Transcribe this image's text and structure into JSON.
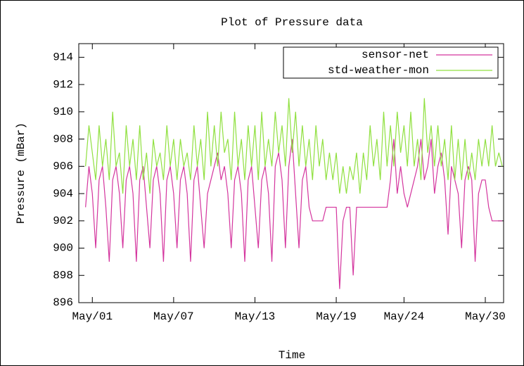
{
  "chart_data": {
    "type": "line",
    "title": "Plot of Pressure data",
    "xlabel": "Time",
    "ylabel": "Pressure (mBar)",
    "xlim": [
      0,
      31.35
    ],
    "ylim": [
      896,
      915
    ],
    "xticks": [
      {
        "value": 1,
        "label": "May/01"
      },
      {
        "value": 7,
        "label": "May/07"
      },
      {
        "value": 13,
        "label": "May/13"
      },
      {
        "value": 19,
        "label": "May/19"
      },
      {
        "value": 24,
        "label": "May/24"
      },
      {
        "value": 30,
        "label": "May/30"
      }
    ],
    "yticks": [
      896,
      898,
      900,
      902,
      904,
      906,
      908,
      910,
      912,
      914
    ],
    "legend": "top-right",
    "x": [
      0.5,
      0.75,
      1,
      1.25,
      1.5,
      1.75,
      2,
      2.25,
      2.5,
      2.75,
      3,
      3.25,
      3.5,
      3.75,
      4,
      4.25,
      4.5,
      4.75,
      5,
      5.25,
      5.5,
      5.75,
      6,
      6.25,
      6.5,
      6.75,
      7,
      7.25,
      7.5,
      7.75,
      8,
      8.25,
      8.5,
      8.75,
      9,
      9.25,
      9.5,
      9.75,
      10,
      10.25,
      10.5,
      10.75,
      11,
      11.25,
      11.5,
      11.75,
      12,
      12.25,
      12.5,
      12.75,
      13,
      13.25,
      13.5,
      13.75,
      14,
      14.25,
      14.5,
      14.75,
      15,
      15.25,
      15.5,
      15.75,
      16,
      16.25,
      16.5,
      16.75,
      17,
      17.25,
      17.5,
      17.75,
      18,
      18.25,
      18.5,
      18.75,
      19,
      19.25,
      19.5,
      19.75,
      20,
      20.25,
      20.5,
      20.75,
      21,
      21.25,
      21.5,
      21.75,
      22,
      22.25,
      22.5,
      22.75,
      23,
      23.25,
      23.5,
      23.75,
      24,
      24.25,
      24.5,
      24.75,
      25,
      25.25,
      25.5,
      25.75,
      26,
      26.25,
      26.5,
      26.75,
      27,
      27.25,
      27.5,
      27.75,
      28,
      28.25,
      28.5,
      28.75,
      29,
      29.25,
      29.5,
      29.75,
      30,
      30.25,
      30.5,
      30.75,
      31,
      31.25
    ],
    "series": [
      {
        "name": "sensor-net",
        "color": "#d4359e",
        "values": [
          903,
          906,
          904,
          900,
          905,
          906,
          903,
          899,
          905,
          906,
          904,
          900,
          905,
          906,
          904,
          899,
          905,
          906,
          903,
          900,
          905,
          906,
          904,
          899,
          905,
          906,
          904,
          900,
          905,
          906,
          904,
          899,
          905,
          906,
          903,
          900,
          904,
          905,
          906,
          907,
          905,
          906,
          904,
          900,
          905,
          906,
          904,
          899,
          905,
          906,
          903,
          900,
          905,
          906,
          904,
          899,
          906,
          907,
          905,
          900,
          906,
          908,
          904,
          900,
          905,
          906,
          903,
          902,
          902,
          902,
          902,
          903,
          903,
          903,
          903,
          897,
          902,
          903,
          903,
          898,
          903,
          903,
          903,
          903,
          903,
          903,
          903,
          903,
          903,
          903,
          905,
          908,
          904,
          906,
          904,
          903,
          904,
          905,
          906,
          908,
          905,
          906,
          908,
          904,
          906,
          907,
          905,
          901,
          906,
          905,
          904,
          900,
          905,
          906,
          905,
          899,
          904,
          905,
          905,
          903,
          902,
          902,
          902,
          902
        ]
      },
      {
        "name": "std-weather-mon",
        "color": "#90e040",
        "values": [
          906,
          909,
          907,
          905,
          909,
          906,
          908,
          905,
          910,
          906,
          907,
          904,
          909,
          906,
          908,
          905,
          909,
          905,
          907,
          904,
          908,
          906,
          907,
          905,
          909,
          906,
          908,
          905,
          908,
          906,
          907,
          905,
          909,
          906,
          908,
          905,
          910,
          906,
          909,
          906,
          910,
          907,
          908,
          905,
          910,
          906,
          908,
          905,
          909,
          906,
          909,
          905,
          910,
          906,
          908,
          906,
          910,
          907,
          909,
          906,
          911,
          907,
          910,
          906,
          909,
          906,
          908,
          905,
          909,
          906,
          908,
          905,
          907,
          905,
          907,
          904,
          906,
          904,
          906,
          905,
          907,
          904,
          907,
          905,
          909,
          906,
          908,
          905,
          910,
          906,
          909,
          906,
          910,
          907,
          909,
          906,
          910,
          906,
          908,
          905,
          911,
          907,
          909,
          906,
          909,
          906,
          908,
          905,
          909,
          905,
          908,
          905,
          908,
          905,
          907,
          905,
          908,
          906,
          908,
          906,
          909,
          906,
          907,
          906
        ]
      }
    ]
  }
}
